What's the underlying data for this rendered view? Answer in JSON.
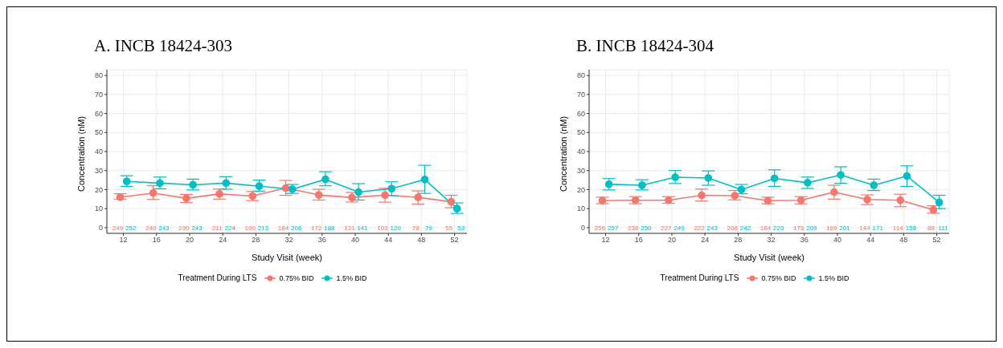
{
  "chart_data": [
    {
      "type": "line",
      "title": "A. INCB 18424-303",
      "xlabel": "Study Visit (week)",
      "ylabel": "Concentration (nM)",
      "legend_title": "Treatment During LTS",
      "xlim": [
        10,
        53.5
      ],
      "xticks": [
        12,
        16,
        20,
        24,
        28,
        32,
        36,
        40,
        44,
        48,
        52
      ],
      "ylim": [
        -3,
        83
      ],
      "yticks": [
        0,
        10,
        20,
        30,
        40,
        50,
        60,
        70,
        80
      ],
      "grid": true,
      "legend": "bottom",
      "marker": "circle",
      "line_style": "solid",
      "series": [
        {
          "name": "0.75% BID",
          "color": "#f8766d",
          "x": [
            11.6,
            15.6,
            19.6,
            23.6,
            27.6,
            31.6,
            35.6,
            39.6,
            43.6,
            47.6,
            51.6
          ],
          "values": [
            16.0,
            18.2,
            15.4,
            17.7,
            16.6,
            20.8,
            17.2,
            15.8,
            17.1,
            15.9,
            13.6
          ],
          "errors": [
            [
              15,
              17.8
            ],
            [
              14.8,
              22
            ],
            [
              13.2,
              17.5
            ],
            [
              15,
              20.3
            ],
            [
              14.2,
              19
            ],
            [
              17,
              24.8
            ],
            [
              14.5,
              20.2
            ],
            [
              13.5,
              18.5
            ],
            [
              13.4,
              20.7
            ],
            [
              12.4,
              19.3
            ],
            [
              10.5,
              17
            ]
          ]
        },
        {
          "name": "1.5% BID",
          "color": "#00bfc4",
          "x": [
            12.4,
            16.4,
            20.4,
            24.4,
            28.4,
            32.4,
            36.4,
            40.4,
            44.4,
            48.4,
            52.3
          ],
          "values": [
            24.3,
            23.4,
            22.5,
            23.4,
            21.8,
            20.2,
            25.4,
            18.7,
            20.5,
            25.3,
            10
          ],
          "errors": [
            [
              21.7,
              27.3
            ],
            [
              20.4,
              26.6
            ],
            [
              19.8,
              25.5
            ],
            [
              20.2,
              26.8
            ],
            [
              19.2,
              25
            ],
            [
              18,
              22.7
            ],
            [
              22,
              29.4
            ],
            [
              14.5,
              23.1
            ],
            [
              16.8,
              24.1
            ],
            [
              18,
              32.8
            ],
            [
              7.5,
              13
            ]
          ]
        }
      ],
      "annotations": [
        "249",
        "252",
        "240",
        "243",
        "230",
        "243",
        "211",
        "224",
        "190",
        "213",
        "184",
        "206",
        "172",
        "188",
        "131",
        "141",
        "103",
        "120",
        "78",
        "79",
        "55",
        "53"
      ]
    },
    {
      "type": "line",
      "title": "B. INCB 18424-304",
      "xlabel": "Study Visit (week)",
      "ylabel": "Concentration (nM)",
      "legend_title": "Treatment During LTS",
      "xlim": [
        10,
        53.5
      ],
      "xticks": [
        12,
        16,
        20,
        24,
        28,
        32,
        36,
        40,
        44,
        48,
        52
      ],
      "ylim": [
        -3,
        83
      ],
      "yticks": [
        0,
        10,
        20,
        30,
        40,
        50,
        60,
        70,
        80
      ],
      "grid": true,
      "legend": "bottom",
      "marker": "circle",
      "line_style": "solid",
      "series": [
        {
          "name": "0.75% BID",
          "color": "#f8766d",
          "x": [
            11.6,
            15.6,
            19.6,
            23.6,
            27.6,
            31.6,
            35.6,
            39.6,
            43.6,
            47.6,
            51.6
          ],
          "values": [
            14.2,
            14.4,
            14.4,
            17,
            16.8,
            14.2,
            14.4,
            18.7,
            14.8,
            14.4,
            9.3
          ],
          "errors": [
            [
              12.6,
              16
            ],
            [
              12.6,
              16.3
            ],
            [
              12.8,
              16.3
            ],
            [
              14,
              20.3
            ],
            [
              14.6,
              19.5
            ],
            [
              12.5,
              16
            ],
            [
              12.5,
              16.3
            ],
            [
              15,
              22.3
            ],
            [
              12.1,
              17.2
            ],
            [
              11,
              17.6
            ],
            [
              7.6,
              11.5
            ]
          ]
        },
        {
          "name": "1.5% BID",
          "color": "#00bfc4",
          "x": [
            12.4,
            16.4,
            20.4,
            24.4,
            28.4,
            32.4,
            36.4,
            40.4,
            44.4,
            48.4,
            52.3
          ],
          "values": [
            22.8,
            22.3,
            26.5,
            26.1,
            20,
            25.9,
            23.6,
            27.7,
            22.3,
            27.1,
            13.3
          ],
          "errors": [
            [
              19.8,
              25.8
            ],
            [
              19.8,
              25.2
            ],
            [
              23.2,
              30
            ],
            [
              22.3,
              29.8
            ],
            [
              17.8,
              22.7
            ],
            [
              21.7,
              30.4
            ],
            [
              20.6,
              26.6
            ],
            [
              23.3,
              32
            ],
            [
              19.5,
              25.5
            ],
            [
              21.7,
              32.5
            ],
            [
              10,
              17
            ]
          ]
        }
      ],
      "annotations": [
        "256",
        "257",
        "238",
        "250",
        "227",
        "249",
        "222",
        "243",
        "206",
        "242",
        "184",
        "220",
        "173",
        "209",
        "169",
        "201",
        "144",
        "171",
        "114",
        "158",
        "88",
        "111"
      ]
    }
  ]
}
